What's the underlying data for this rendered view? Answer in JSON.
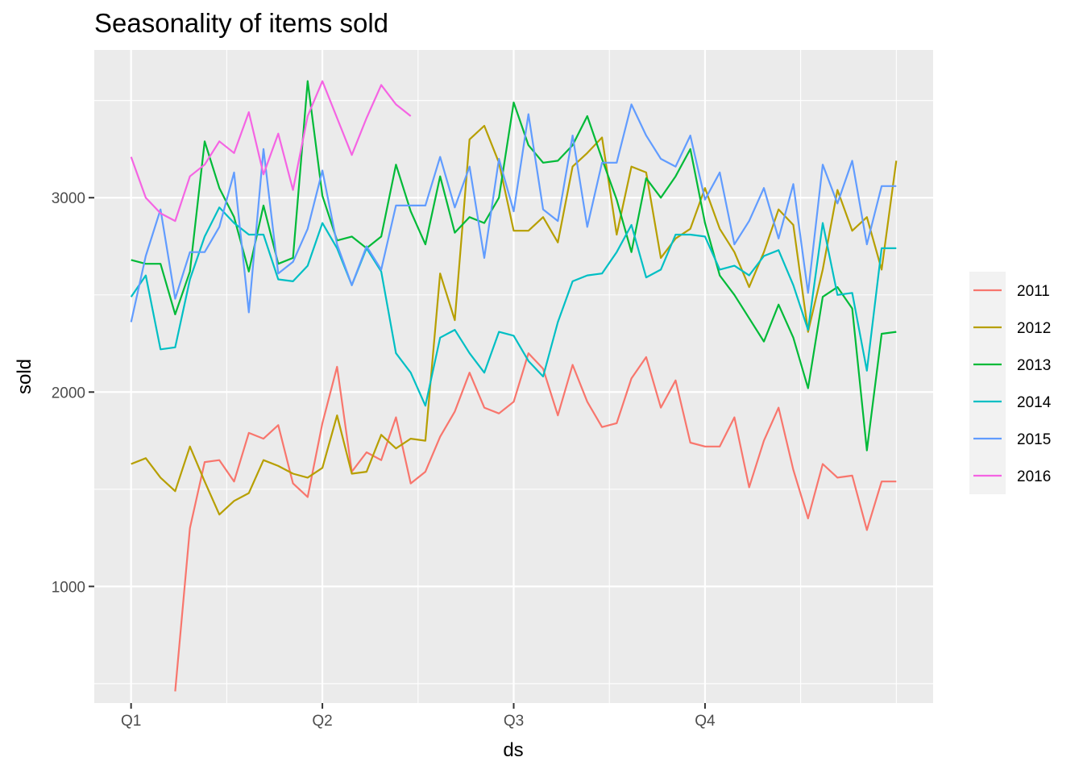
{
  "chart_data": {
    "type": "line",
    "title": "Seasonality of items sold",
    "xlabel": "ds",
    "ylabel": "sold",
    "x_tick_labels": [
      "Q1",
      "Q2",
      "Q3",
      "Q4"
    ],
    "y_tick_labels": [
      "1000",
      "2000",
      "3000"
    ],
    "y_ticks": [
      1000,
      2000,
      3000
    ],
    "x_ticks_week": [
      0,
      13,
      26,
      39
    ],
    "xlim": [
      -2.5,
      54.5
    ],
    "ylim": [
      400,
      3760
    ],
    "grid": true,
    "legend_position": "right",
    "series": [
      {
        "name": "2011",
        "color": "#F8766D",
        "x": [
          3,
          4,
          5,
          6,
          7,
          8,
          9,
          10,
          11,
          12,
          13,
          14,
          15,
          16,
          17,
          18,
          19,
          20,
          21,
          22,
          23,
          24,
          25,
          26,
          27,
          28,
          29,
          30,
          31,
          32,
          33,
          34,
          35,
          36,
          37,
          38,
          39,
          40,
          41,
          42,
          43,
          44,
          45,
          46,
          47,
          48,
          49,
          50,
          51,
          52
        ],
        "values": [
          460,
          1300,
          1640,
          1650,
          1540,
          1790,
          1760,
          1830,
          1530,
          1460,
          1840,
          2130,
          1590,
          1690,
          1650,
          1870,
          1530,
          1590,
          1770,
          1900,
          2100,
          1920,
          1890,
          1950,
          2200,
          2120,
          1880,
          2140,
          1950,
          1820,
          1840,
          2070,
          2180,
          1920,
          2060,
          1740,
          1720,
          1720,
          1870,
          1510,
          1750,
          1920,
          1600,
          1350,
          1630,
          1560,
          1570,
          1290,
          1540,
          1540
        ]
      },
      {
        "name": "2012",
        "color": "#B79F00",
        "x": [
          0,
          1,
          2,
          3,
          4,
          5,
          6,
          7,
          8,
          9,
          10,
          11,
          12,
          13,
          14,
          15,
          16,
          17,
          18,
          19,
          20,
          21,
          22,
          23,
          24,
          25,
          26,
          27,
          28,
          29,
          30,
          31,
          32,
          33,
          34,
          35,
          36,
          37,
          38,
          39,
          40,
          41,
          42,
          43,
          44,
          45,
          46,
          47,
          48,
          49,
          50,
          51,
          52
        ],
        "values": [
          1630,
          1660,
          1560,
          1490,
          1720,
          1540,
          1370,
          1440,
          1480,
          1650,
          1620,
          1580,
          1560,
          1610,
          1880,
          1580,
          1590,
          1780,
          1710,
          1760,
          1750,
          2610,
          2370,
          3300,
          3370,
          3180,
          2830,
          2830,
          2900,
          2770,
          3160,
          3230,
          3310,
          2810,
          3160,
          3130,
          2690,
          2790,
          2840,
          3050,
          2840,
          2720,
          2540,
          2720,
          2940,
          2860,
          2310,
          2630,
          3040,
          2830,
          2900,
          2630,
          3190
        ]
      },
      {
        "name": "2013",
        "color": "#00BA38",
        "x": [
          0,
          1,
          2,
          3,
          4,
          5,
          6,
          7,
          8,
          9,
          10,
          11,
          12,
          13,
          14,
          15,
          16,
          17,
          18,
          19,
          20,
          21,
          22,
          23,
          24,
          25,
          26,
          27,
          28,
          29,
          30,
          31,
          32,
          33,
          34,
          35,
          36,
          37,
          38,
          39,
          40,
          41,
          42,
          43,
          44,
          45,
          46,
          47,
          48,
          49,
          50,
          51,
          52
        ],
        "values": [
          2680,
          2660,
          2660,
          2400,
          2620,
          3290,
          3050,
          2900,
          2620,
          2960,
          2660,
          2690,
          3600,
          3010,
          2780,
          2800,
          2740,
          2800,
          3170,
          2930,
          2760,
          3110,
          2820,
          2900,
          2870,
          3000,
          3490,
          3270,
          3180,
          3190,
          3270,
          3420,
          3200,
          2990,
          2720,
          3100,
          3000,
          3110,
          3250,
          2870,
          2600,
          2500,
          2380,
          2260,
          2450,
          2280,
          2020,
          2490,
          2540,
          2430,
          1700,
          2300,
          2310
        ]
      },
      {
        "name": "2014",
        "color": "#00BFC4",
        "x": [
          0,
          1,
          2,
          3,
          4,
          5,
          6,
          7,
          8,
          9,
          10,
          11,
          12,
          13,
          14,
          15,
          16,
          17,
          18,
          19,
          20,
          21,
          22,
          23,
          24,
          25,
          26,
          27,
          28,
          29,
          30,
          31,
          32,
          33,
          34,
          35,
          36,
          37,
          38,
          39,
          40,
          41,
          42,
          43,
          44,
          45,
          46,
          47,
          48,
          49,
          50,
          51,
          52
        ],
        "values": [
          2490,
          2600,
          2220,
          2230,
          2580,
          2800,
          2950,
          2870,
          2810,
          2810,
          2580,
          2570,
          2650,
          2870,
          2740,
          2550,
          2740,
          2620,
          2200,
          2100,
          1930,
          2280,
          2320,
          2200,
          2100,
          2310,
          2290,
          2160,
          2080,
          2360,
          2570,
          2600,
          2610,
          2720,
          2860,
          2590,
          2630,
          2810,
          2810,
          2800,
          2630,
          2650,
          2600,
          2700,
          2730,
          2550,
          2320,
          2870,
          2500,
          2510,
          2110,
          2740,
          2740
        ]
      },
      {
        "name": "2015",
        "color": "#619CFF",
        "x": [
          0,
          1,
          2,
          3,
          4,
          5,
          6,
          7,
          8,
          9,
          10,
          11,
          12,
          13,
          14,
          15,
          16,
          17,
          18,
          19,
          20,
          21,
          22,
          23,
          24,
          25,
          26,
          27,
          28,
          29,
          30,
          31,
          32,
          33,
          34,
          35,
          36,
          37,
          38,
          39,
          40,
          41,
          42,
          43,
          44,
          45,
          46,
          47,
          48,
          49,
          50,
          51,
          52
        ],
        "values": [
          2360,
          2700,
          2940,
          2480,
          2720,
          2720,
          2850,
          3130,
          2410,
          3250,
          2610,
          2670,
          2840,
          3140,
          2760,
          2550,
          2750,
          2630,
          2960,
          2960,
          2960,
          3210,
          2950,
          3160,
          2690,
          3200,
          2930,
          3430,
          2940,
          2880,
          3320,
          2850,
          3180,
          3180,
          3480,
          3320,
          3200,
          3160,
          3320,
          2990,
          3130,
          2760,
          2880,
          3050,
          2790,
          3070,
          2510,
          3170,
          2970,
          3190,
          2760,
          3060,
          3060
        ]
      },
      {
        "name": "2016",
        "color": "#F564E3",
        "x": [
          0,
          1,
          2,
          3,
          4,
          5,
          6,
          7,
          8,
          9,
          10,
          11,
          12,
          13,
          14,
          15,
          16,
          17,
          18,
          19
        ],
        "values": [
          3210,
          3000,
          2920,
          2880,
          3110,
          3170,
          3290,
          3230,
          3440,
          3120,
          3330,
          3040,
          3420,
          3600,
          3410,
          3220,
          3410,
          3580,
          3480,
          3420
        ]
      }
    ]
  }
}
